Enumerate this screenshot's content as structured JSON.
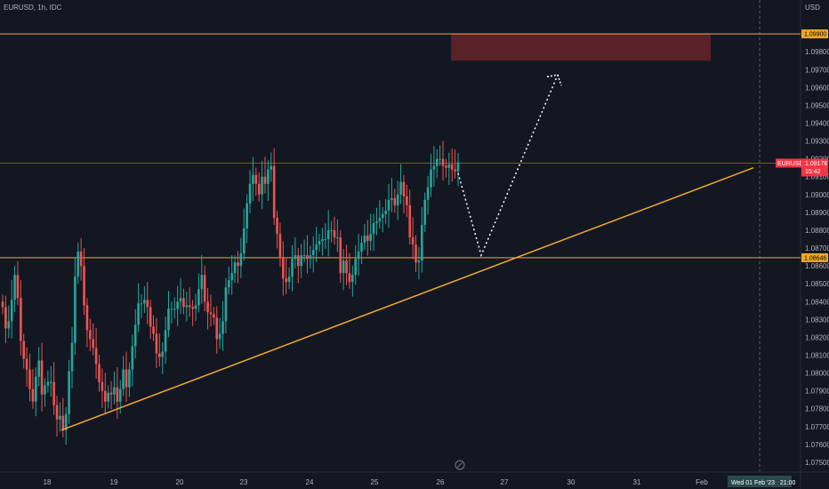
{
  "header": {
    "symbol": "EURUSD",
    "timeframe": "1h",
    "exchange": "IDC"
  },
  "currency": "USD",
  "colors": {
    "background": "#131722",
    "up": "#26a69a",
    "down": "#ef5350",
    "level": "#f0a830",
    "target_zone": "#5a2228",
    "price_tag": "#f23645",
    "axis_text": "#b2b5be",
    "date_tag": "#2a4a4a"
  },
  "price_tag": {
    "symbol": "EURUSD",
    "price": "1.09176",
    "countdown": "15:42"
  },
  "crosshair_date": "Wed 01 Feb '23   21:00",
  "chart_data": {
    "type": "candlestick",
    "title": "",
    "xlabel": "",
    "ylabel": "",
    "ylim": [
      1.0745,
      1.1005
    ],
    "y_ticks": [
      "1.07500",
      "1.07600",
      "1.07700",
      "1.07800",
      "1.07900",
      "1.08000",
      "1.08100",
      "1.08200",
      "1.08300",
      "1.08400",
      "1.08500",
      "1.08600",
      "1.08700",
      "1.08800",
      "1.08900",
      "1.09000",
      "1.09100",
      "1.09200",
      "1.09300",
      "1.09400",
      "1.09500",
      "1.09600",
      "1.09700",
      "1.09800"
    ],
    "x_ticks": [
      "18",
      "19",
      "20",
      "23",
      "24",
      "25",
      "26",
      "27",
      "30",
      "31",
      "Feb"
    ],
    "key_levels": [
      {
        "label": "1.09900",
        "value": 1.099
      },
      {
        "label": "1.08646",
        "value": 1.08646
      }
    ],
    "current_price": 1.09176,
    "target_zone": {
      "price_low": 1.0975,
      "price_high": 1.099,
      "start_label": "26",
      "end_label": "31"
    },
    "trendline": {
      "start": {
        "x": "18",
        "price": 1.0768
      },
      "end": {
        "x": "Feb",
        "price": 1.0915
      }
    },
    "projection": [
      {
        "x": "26",
        "price": 1.0912
      },
      {
        "x": "27",
        "price": 1.0866
      },
      {
        "x": "30",
        "price": 1.0967
      }
    ],
    "series": [
      {
        "type": "close",
        "values": [
          1.0837,
          1.0825,
          1.0829,
          1.0841,
          1.0855,
          1.0842,
          1.0818,
          1.0808,
          1.0802,
          1.0791,
          1.0784,
          1.0798,
          1.0807,
          1.0788,
          1.0793,
          1.0795,
          1.0795,
          1.0782,
          1.0774,
          1.0776,
          1.0768,
          1.0777,
          1.0801,
          1.0817,
          1.0854,
          1.0868,
          1.086,
          1.0838,
          1.0824,
          1.0819,
          1.0814,
          1.0805,
          1.0795,
          1.079,
          1.0784,
          1.0789,
          1.0788,
          1.0792,
          1.0784,
          1.0791,
          1.0802,
          1.0792,
          1.0802,
          1.0815,
          1.0827,
          1.0839,
          1.0839,
          1.0841,
          1.0837,
          1.0826,
          1.0822,
          1.0811,
          1.0809,
          1.0812,
          1.0824,
          1.0836,
          1.0836,
          1.0836,
          1.084,
          1.0842,
          1.0837,
          1.0838,
          1.0837,
          1.0836,
          1.0838,
          1.0847,
          1.0855,
          1.084,
          1.0834,
          1.0833,
          1.0831,
          1.0819,
          1.0822,
          1.0829,
          1.0848,
          1.0852,
          1.0856,
          1.0862,
          1.086,
          1.0867,
          1.0881,
          1.0895,
          1.0906,
          1.0911,
          1.0906,
          1.09,
          1.091,
          1.0906,
          1.0914,
          1.0916,
          1.0887,
          1.0878,
          1.0865,
          1.0853,
          1.0851,
          1.0854,
          1.0864,
          1.0866,
          1.086,
          1.0866,
          1.0866,
          1.0864,
          1.0866,
          1.0869,
          1.0872,
          1.0874,
          1.0875,
          1.0875,
          1.088,
          1.088,
          1.0876,
          1.0876,
          1.0856,
          1.0863,
          1.0856,
          1.0851,
          1.0855,
          1.0864,
          1.0868,
          1.0873,
          1.0877,
          1.0874,
          1.0878,
          1.0884,
          1.0885,
          1.0887,
          1.0889,
          1.0891,
          1.0897,
          1.0898,
          1.0894,
          1.09,
          1.0907,
          1.0899,
          1.0894,
          1.0876,
          1.0872,
          1.0862,
          1.0863,
          1.0883,
          1.0897,
          1.0904,
          1.0914,
          1.0916,
          1.092,
          1.092,
          1.0916,
          1.0915,
          1.0917,
          1.0914,
          1.0913,
          1.0918
        ]
      }
    ]
  }
}
